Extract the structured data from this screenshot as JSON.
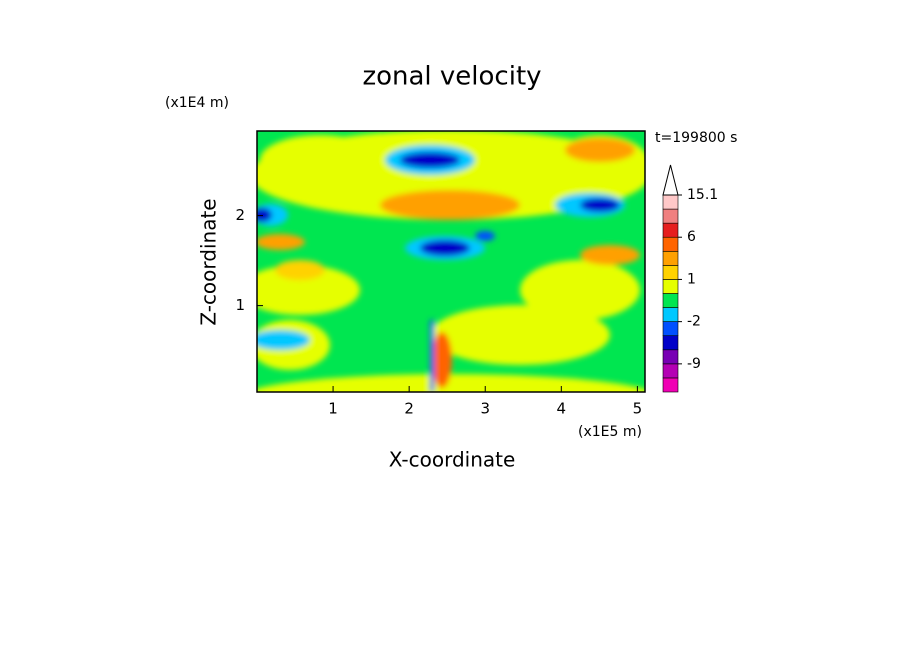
{
  "chart_data": {
    "type": "contour",
    "title": "zonal velocity",
    "x_label": "X-coordinate",
    "y_label": "Z-coordinate",
    "x_unit": "(x1E5 m)",
    "y_unit": "(x1E4 m)",
    "time_label": "t=199800 s",
    "xlim": [
      0,
      5.1
    ],
    "xticks": [
      1,
      2,
      3,
      4,
      5
    ],
    "ylim": [
      0.04,
      2.94
    ],
    "yticks": [
      1,
      2
    ],
    "colorbar": {
      "colors": [
        "#f000b4",
        "#b400b4",
        "#7800b4",
        "#0000c8",
        "#0050ff",
        "#00c8ff",
        "#00e650",
        "#e6ff00",
        "#ffd200",
        "#ffa000",
        "#ff6400",
        "#e61e1e",
        "#f08080",
        "#ffc8c8"
      ],
      "levels": [
        -15,
        -12,
        -9,
        -6,
        -4,
        -2,
        -1,
        0,
        1,
        2,
        4,
        6,
        9,
        12,
        15.1
      ],
      "ticks": [
        -9,
        -2,
        1,
        6,
        15.1
      ],
      "extend_color": "#ffffff"
    }
  }
}
